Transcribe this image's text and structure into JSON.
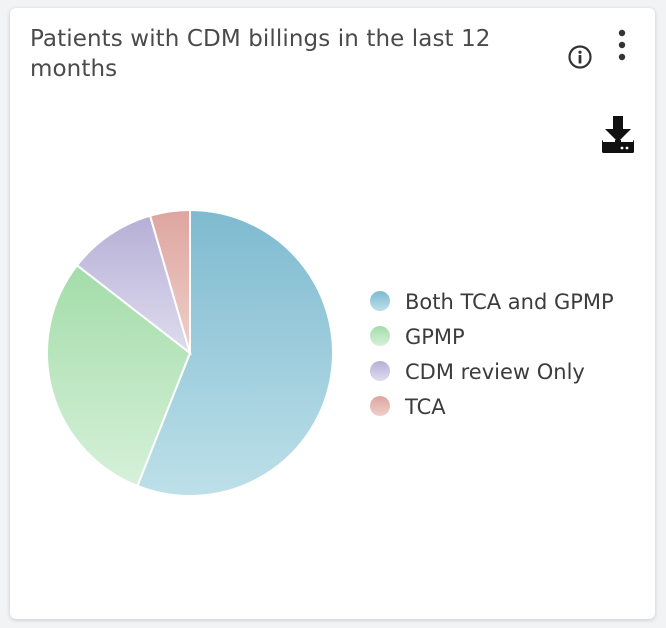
{
  "header": {
    "title": "Patients with CDM billings in the last 12 months"
  },
  "icons": {
    "info": "info-icon",
    "menu": "kebab-menu-icon",
    "download": "download-icon"
  },
  "colors": {
    "series": [
      "#7ebad0",
      "#a3dca9",
      "#b6afd6",
      "#dea59f"
    ],
    "series_light": [
      "#bde0e9",
      "#d6f1d9",
      "#dfdcef",
      "#f0cfca"
    ]
  },
  "chart_data": {
    "type": "pie",
    "title": "Patients with CDM billings in the last 12 months",
    "categories": [
      "Both TCA and GPMP",
      "GPMP",
      "CDM review Only",
      "TCA"
    ],
    "values": [
      56,
      29.5,
      10,
      4.5
    ],
    "legend_position": "right"
  }
}
